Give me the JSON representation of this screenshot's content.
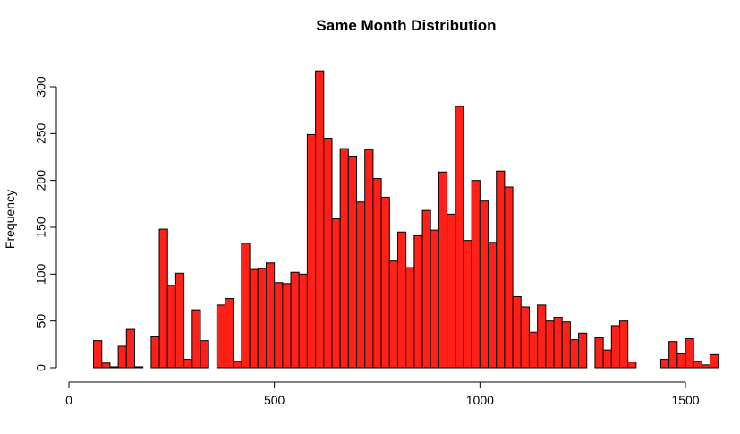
{
  "chart_data": {
    "type": "bar",
    "title": "Same Month Distribution",
    "xlabel": "",
    "ylabel": "Frequency",
    "bin_width": 20,
    "bin_starts": [
      60,
      80,
      100,
      120,
      140,
      160,
      180,
      200,
      220,
      240,
      260,
      280,
      300,
      320,
      340,
      360,
      380,
      400,
      420,
      440,
      460,
      480,
      500,
      520,
      540,
      560,
      580,
      600,
      620,
      640,
      660,
      680,
      700,
      720,
      740,
      760,
      780,
      800,
      820,
      840,
      860,
      880,
      900,
      920,
      940,
      960,
      980,
      1000,
      1020,
      1040,
      1060,
      1080,
      1100,
      1120,
      1140,
      1160,
      1180,
      1200,
      1220,
      1240,
      1260,
      1280,
      1300,
      1320,
      1340,
      1360,
      1380,
      1400,
      1420,
      1440,
      1460,
      1480,
      1500,
      1520,
      1540,
      1560
    ],
    "values": [
      29,
      5,
      1,
      23,
      41,
      1,
      0,
      33,
      148,
      88,
      101,
      9,
      62,
      29,
      0,
      67,
      74,
      7,
      133,
      105,
      106,
      112,
      91,
      90,
      102,
      100,
      249,
      317,
      245,
      159,
      234,
      226,
      177,
      233,
      202,
      182,
      114,
      145,
      107,
      141,
      168,
      147,
      209,
      164,
      279,
      136,
      200,
      178,
      134,
      210,
      193,
      76,
      65,
      38,
      67,
      50,
      54,
      49,
      30,
      37,
      0,
      32,
      19,
      45,
      50,
      6,
      0,
      0,
      0,
      9,
      28,
      15,
      31,
      7,
      3,
      14
    ],
    "xlim": [
      0,
      1580
    ],
    "ylim": [
      0,
      330
    ],
    "x_ticks": [
      "0",
      "500",
      "1000",
      "1500"
    ],
    "y_ticks": [
      "0",
      "50",
      "100",
      "150",
      "200",
      "250",
      "300"
    ],
    "bar_color": "#ff2018",
    "bar_stroke": "#000000",
    "grid": false,
    "legend": "none"
  }
}
